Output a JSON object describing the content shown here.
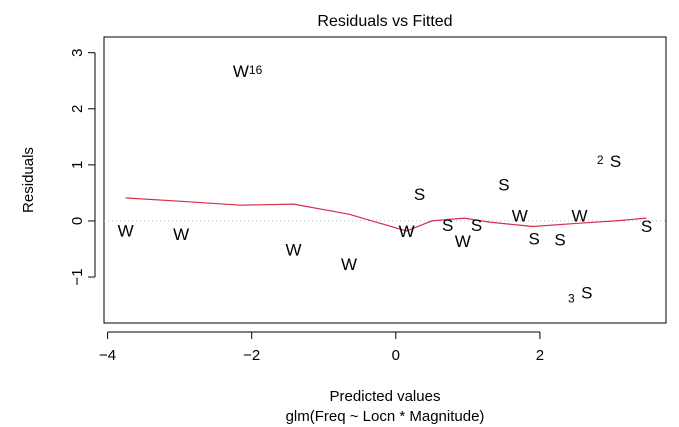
{
  "chart_data": {
    "type": "scatter",
    "title": "Residuals vs Fitted",
    "xlabel": "Predicted values",
    "subtitle": "glm(Freq ~ Locn * Magnitude)",
    "ylabel": "Residuals",
    "xlim": [
      -4.05,
      3.75
    ],
    "ylim": [
      -1.82,
      3.28
    ],
    "x_ticks": [
      -4,
      -2,
      0,
      2
    ],
    "x_tick_labels": [
      "−4",
      "−2",
      "0",
      "2"
    ],
    "y_ticks": [
      -1,
      0,
      1,
      2,
      3
    ],
    "y_tick_labels": [
      "−1",
      "0",
      "1",
      "2",
      "3"
    ],
    "reference_line": {
      "y": 0,
      "style": "dotted",
      "color": "#bbbbbb"
    },
    "grid": false,
    "points": [
      {
        "x": -3.75,
        "y": -0.17,
        "label": "W"
      },
      {
        "x": -2.98,
        "y": -0.23,
        "label": "W"
      },
      {
        "x": -2.15,
        "y": 2.67,
        "label": "W",
        "id": "16"
      },
      {
        "x": -1.42,
        "y": -0.51,
        "label": "W"
      },
      {
        "x": -0.65,
        "y": -0.77,
        "label": "W"
      },
      {
        "x": 0.15,
        "y": -0.18,
        "label": "W"
      },
      {
        "x": 0.33,
        "y": 0.48,
        "label": "S"
      },
      {
        "x": 0.72,
        "y": -0.07,
        "label": "S"
      },
      {
        "x": 0.93,
        "y": -0.36,
        "label": "W"
      },
      {
        "x": 1.12,
        "y": -0.07,
        "label": "S"
      },
      {
        "x": 1.5,
        "y": 0.65,
        "label": "S"
      },
      {
        "x": 1.72,
        "y": 0.1,
        "label": "W"
      },
      {
        "x": 1.92,
        "y": -0.31,
        "label": "S"
      },
      {
        "x": 2.28,
        "y": -0.33,
        "label": "S"
      },
      {
        "x": 2.55,
        "y": 0.1,
        "label": "W"
      },
      {
        "x": 2.65,
        "y": -1.28,
        "label": "S",
        "id": "3"
      },
      {
        "x": 3.05,
        "y": 1.07,
        "label": "S",
        "id": "2"
      },
      {
        "x": 3.48,
        "y": -0.09,
        "label": "S"
      }
    ],
    "series": [
      {
        "type": "line",
        "color": "#d62e4f",
        "x": [
          -3.75,
          -2.98,
          -2.15,
          -1.42,
          -0.65,
          0.15,
          0.5,
          0.95,
          1.3,
          1.9,
          2.55,
          3.05,
          3.48
        ],
        "y": [
          0.41,
          0.35,
          0.28,
          0.3,
          0.12,
          -0.18,
          0.0,
          0.05,
          -0.02,
          -0.1,
          -0.04,
          0.0,
          0.05
        ]
      }
    ]
  }
}
